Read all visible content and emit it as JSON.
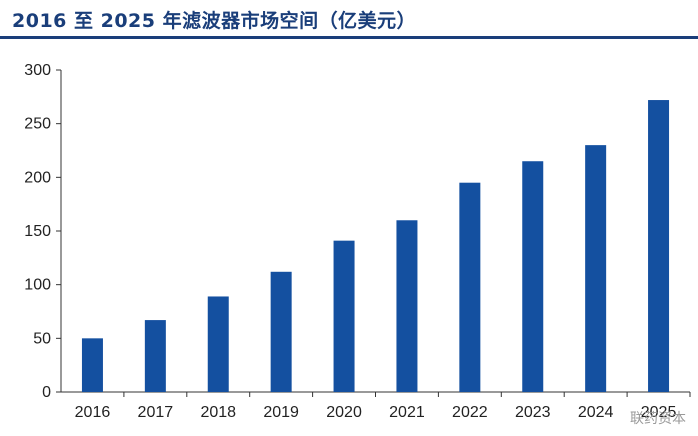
{
  "title": "2016 至 2025 年滤波器市场空间（亿美元）",
  "watermark": "联药资本",
  "chart_data": {
    "type": "bar",
    "title": "2016 至 2025 年滤波器市场空间（亿美元）",
    "categories": [
      "2016",
      "2017",
      "2018",
      "2019",
      "2020",
      "2021",
      "2022",
      "2023",
      "2024",
      "2025"
    ],
    "values": [
      50,
      67,
      89,
      112,
      141,
      160,
      195,
      215,
      230,
      272
    ],
    "ylim": [
      0,
      300
    ],
    "yticks": [
      0,
      50,
      100,
      150,
      200,
      250,
      300
    ],
    "bar_color": "#1450a0",
    "grid": false,
    "legend": "none"
  }
}
